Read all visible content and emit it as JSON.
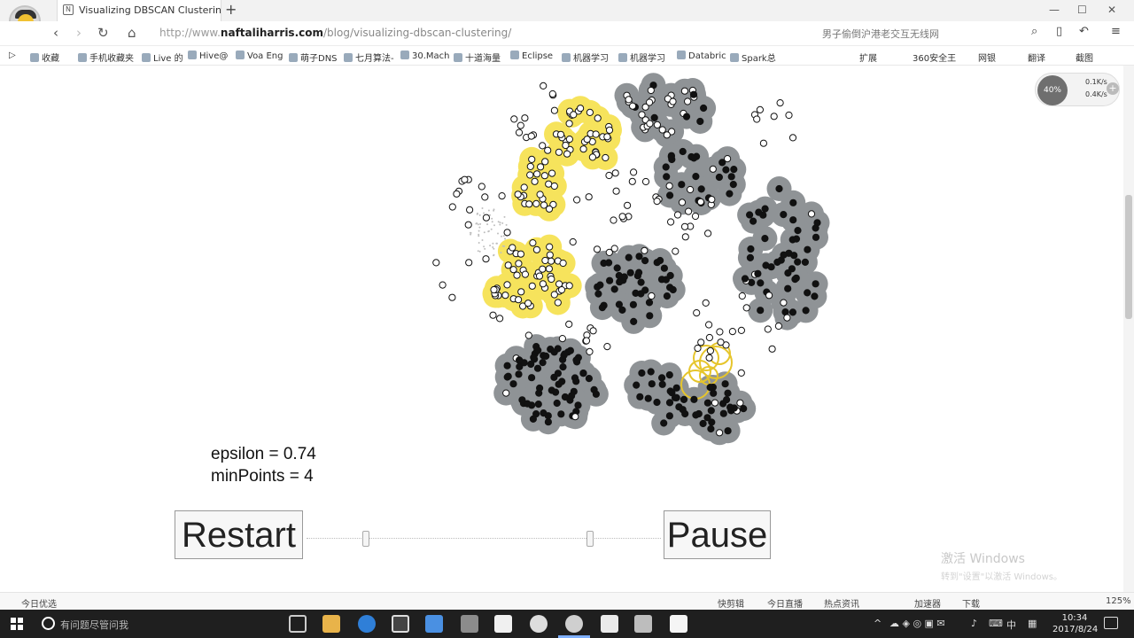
{
  "browser": {
    "tab_title": "Visualizing DBSCAN Clustering",
    "tab_close": "×",
    "new_tab": "+",
    "url_protocol": "http://www.",
    "url_host": "naftaliharris.com",
    "url_path": "/blog/visualizing-dbscan-clustering/",
    "search_hint": "男子偷倒沪港老交互无线网",
    "window_controls": [
      "—",
      "☐",
      "✕"
    ]
  },
  "bookmarks": {
    "items": [
      "收藏",
      "手机收藏夹",
      "Live 的",
      "Hive@",
      "Voa Eng",
      "萌子DNS",
      "七月算法-",
      "30.Mach",
      "十道海量",
      "Eclipse",
      "机器学习",
      "机器学习",
      "Databric",
      "Spark总"
    ],
    "right_items": [
      "扩展",
      "360安全王",
      "网银",
      "翻译",
      "截图"
    ]
  },
  "speed_widget": {
    "percent": "40%",
    "upload": "0.1K/s",
    "download": "0.4K/s"
  },
  "dbscan": {
    "epsilon_text": "epsilon = 0.74",
    "minpoints_text": "minPoints = 4",
    "restart_label": "Restart",
    "pause_label": "Pause",
    "colors": {
      "cluster_gray": "#8f9396",
      "cluster_yellow": "#f6e35c",
      "core_point": "#111111",
      "unvisited_point": "#ffffff",
      "ring_yellow": "#e6c52b"
    }
  },
  "watermark": {
    "line1": "激活 Windows",
    "line2": "转到\"设置\"以激活 Windows。"
  },
  "statusbar": {
    "left": "今日优选",
    "items": [
      "快剪辑",
      "今日直播",
      "热点资讯",
      "加速器",
      "下载"
    ],
    "zoom": "125%"
  },
  "taskbar": {
    "search_placeholder": "有问题尽管问我",
    "clock_time": "10:34",
    "clock_date": "2017/8/24",
    "ime": "中"
  }
}
